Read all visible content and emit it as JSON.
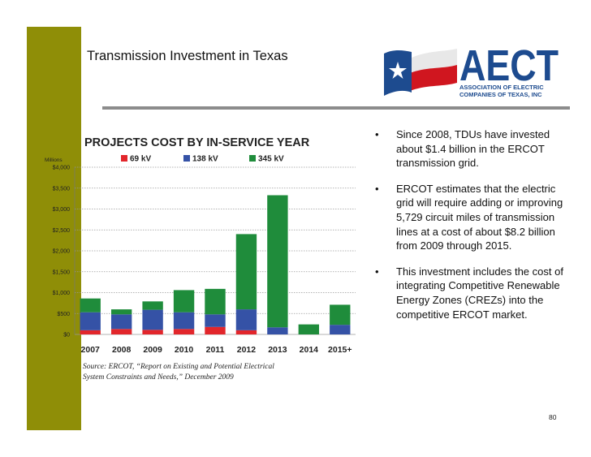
{
  "slide": {
    "title": "Transmission Investment in Texas",
    "page_number": "80",
    "source_line1": "Source: ERCOT, “Report on Existing and Potential Electrical",
    "source_line2": "System Constraints and Needs,” December 2009"
  },
  "logo": {
    "name": "AECT",
    "line1": "ASSOCIATION OF ELECTRIC",
    "line2": "COMPANIES OF TEXAS, INC",
    "colors": {
      "blue": "#1d4b8f",
      "red": "#d0161f"
    }
  },
  "bullets": [
    "Since 2008, TDUs have invested about $1.4 billion in the ERCOT transmission grid.",
    "ERCOT estimates that the electric grid will require adding or improving 5,729 circuit miles of transmission lines at a cost of about $8.2 billion from 2009 through 2015.",
    "This investment includes the cost of integrating Competitive Renewable Energy Zones (CREZs) into the competitive ERCOT market."
  ],
  "bullet_glyph": "•",
  "chart_data": {
    "type": "bar",
    "stacked": true,
    "title": "PROJECTS COST BY IN-SERVICE YEAR",
    "unit_label": "Millions",
    "categories": [
      "2007",
      "2008",
      "2009",
      "2010",
      "2011",
      "2012",
      "2013",
      "2014",
      "2015+"
    ],
    "series": [
      {
        "name": "69 kV",
        "color": "#e2262b",
        "values": [
          100,
          130,
          110,
          130,
          180,
          100,
          0,
          0,
          0
        ]
      },
      {
        "name": "138 kV",
        "color": "#3552a6",
        "values": [
          430,
          350,
          480,
          400,
          300,
          500,
          170,
          0,
          230
        ]
      },
      {
        "name": "345 kV",
        "color": "#1f8c3b",
        "values": [
          330,
          120,
          200,
          530,
          610,
          1800,
          3160,
          240,
          480
        ]
      }
    ],
    "ylim": [
      0,
      4000
    ],
    "yticks": [
      0,
      500,
      1000,
      1500,
      2000,
      2500,
      3000,
      3500,
      4000
    ],
    "ytick_labels": [
      "$0",
      "$500",
      "$1,000",
      "$1,500",
      "$2,000",
      "$2,500",
      "$3,000",
      "$3,500",
      "$4,000"
    ],
    "grid": true,
    "legend_position": "top"
  }
}
